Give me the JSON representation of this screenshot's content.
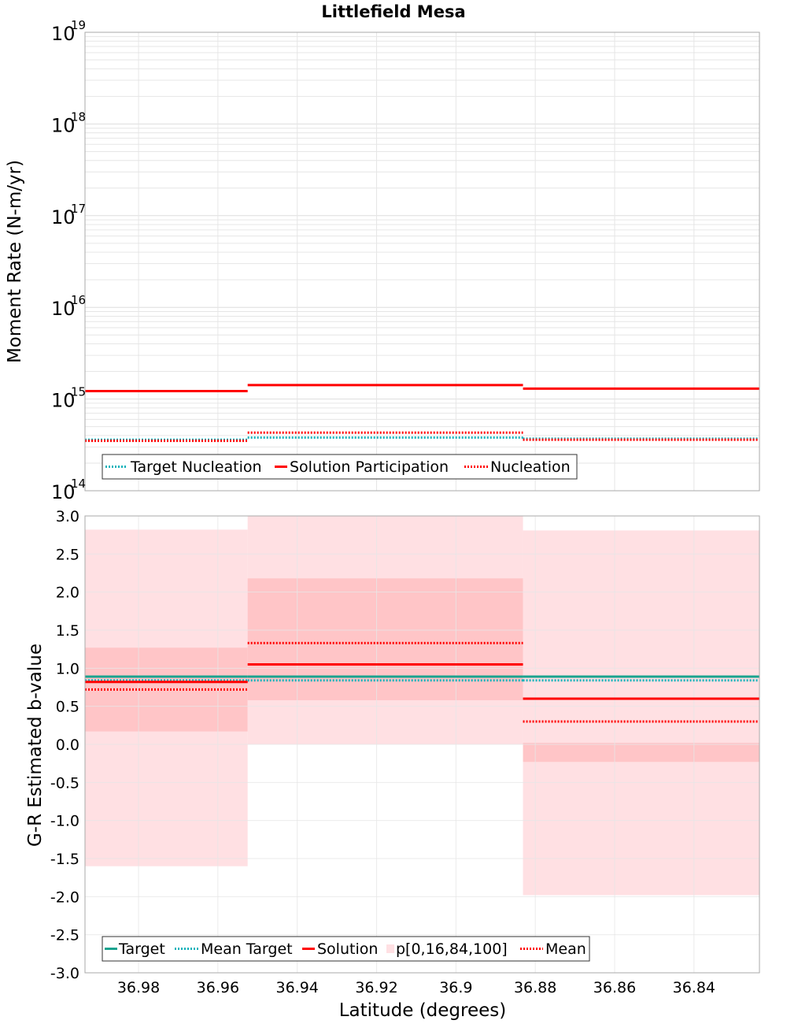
{
  "title": "Littlefield Mesa",
  "colors": {
    "red": "#ff0000",
    "target": "#1aa38f",
    "meanTarget": "#17b3bb",
    "bandOuter": "#ffe0e3",
    "bandInner": "#ffc5c7",
    "grid": "#e6e6e6",
    "frame": "#aaaaaa"
  },
  "chart_data": [
    {
      "type": "line",
      "id": "top",
      "ylabel": "Moment Rate (N-m/yr)",
      "xlabel": "",
      "yscale": "log",
      "ylim_exp": [
        14,
        19
      ],
      "y_tick_labels": [
        {
          "base": "10",
          "exp": "14"
        },
        {
          "base": "10",
          "exp": "15"
        },
        {
          "base": "10",
          "exp": "16"
        },
        {
          "base": "10",
          "exp": "17"
        },
        {
          "base": "10",
          "exp": "18"
        },
        {
          "base": "10",
          "exp": "19"
        }
      ],
      "x_reversed": true,
      "xlim": [
        36.9935,
        36.8235
      ],
      "bins": [
        [
          36.9935,
          36.9525
        ],
        [
          36.9525,
          36.8831
        ],
        [
          36.8831,
          36.8235
        ]
      ],
      "series": [
        {
          "name": "Target Nucleation",
          "style": "dotted",
          "color": "#17b3bb",
          "values": [
            360000000000000.0,
            380000000000000.0,
            370000000000000.0
          ]
        },
        {
          "name": "Solution Participation",
          "style": "solid",
          "color": "#ff0000",
          "values": [
            1220000000000000.0,
            1420000000000000.0,
            1300000000000000.0
          ]
        },
        {
          "name": "Nucleation",
          "style": "dotted",
          "color": "#ff0000",
          "values": [
            350000000000000.0,
            430000000000000.0,
            360000000000000.0
          ]
        }
      ],
      "legend": [
        "Target Nucleation",
        "Solution Participation",
        "Nucleation"
      ]
    },
    {
      "type": "line",
      "id": "bottom",
      "ylabel": "G-R Estimated b-value",
      "xlabel": "Latitude (degrees)",
      "ylim": [
        -3.0,
        3.0
      ],
      "y_ticks": [
        "3.0",
        "2.5",
        "2.0",
        "1.5",
        "1.0",
        "0.5",
        "0.0",
        "-0.5",
        "-1.0",
        "-1.5",
        "-2.0",
        "-2.5",
        "-3.0"
      ],
      "x_reversed": true,
      "xlim": [
        36.9935,
        36.8235
      ],
      "x_ticks": [
        "36.98",
        "36.96",
        "36.94",
        "36.92",
        "36.9",
        "36.88",
        "36.86",
        "36.84"
      ],
      "bins": [
        [
          36.9935,
          36.9525
        ],
        [
          36.9525,
          36.8831
        ],
        [
          36.8831,
          36.8235
        ]
      ],
      "bands": [
        {
          "p0": -1.6,
          "p16": 0.17,
          "p84": 1.27,
          "p100": 2.82
        },
        {
          "p0": 0.0,
          "p16": 0.58,
          "p84": 2.18,
          "p100": 3.0
        },
        {
          "p0": -1.98,
          "p16": -0.23,
          "p84": 0.02,
          "p100": 2.81
        }
      ],
      "series": [
        {
          "name": "Target",
          "style": "solid",
          "color": "#1aa38f",
          "values": [
            0.89,
            0.89,
            0.89
          ]
        },
        {
          "name": "Mean Target",
          "style": "dotted",
          "color": "#17b3bb",
          "values": [
            0.84,
            0.84,
            0.84
          ]
        },
        {
          "name": "Solution",
          "style": "solid",
          "color": "#ff0000",
          "values": [
            0.82,
            1.05,
            0.6
          ]
        },
        {
          "name": "Mean",
          "style": "dotted",
          "color": "#ff0000",
          "values": [
            0.72,
            1.33,
            0.3
          ]
        }
      ],
      "legend": [
        "Target",
        "Mean Target",
        "Solution",
        "p[0,16,84,100]",
        "Mean"
      ]
    }
  ]
}
